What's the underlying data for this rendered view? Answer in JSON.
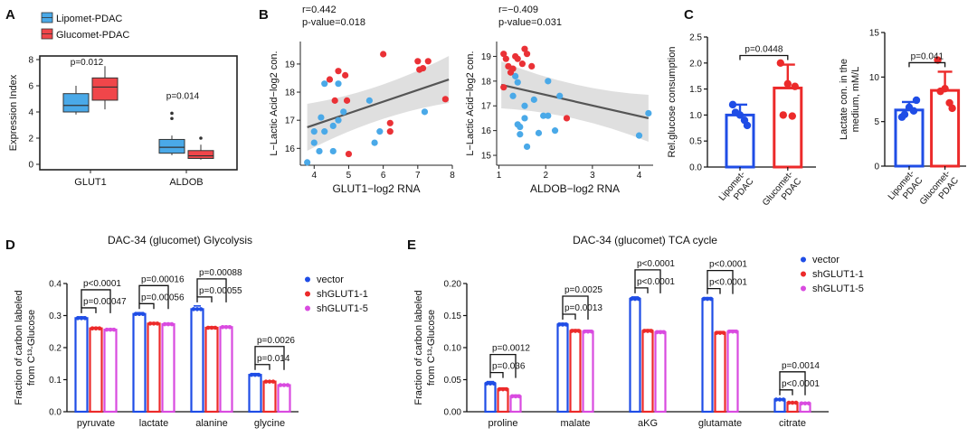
{
  "panel_letters": [
    "A",
    "B",
    "C",
    "D",
    "E"
  ],
  "chart_data": [
    {
      "id": "A",
      "type": "box",
      "ylabel": "Expression Index",
      "ylim": [
        0,
        8
      ],
      "yticks": [
        "0",
        "2",
        "4",
        "6",
        "8"
      ],
      "categories": [
        "GLUT1",
        "ALDOB"
      ],
      "legend": [
        "Lipomet-PDAC",
        "Glucomet-PDAC"
      ],
      "colors": [
        "#4aa9e8",
        "#f0464a"
      ],
      "boxes": [
        {
          "category": "GLUT1",
          "group": "Lipomet-PDAC",
          "min": 3.8,
          "q1": 4.0,
          "median": 4.5,
          "q3": 5.4,
          "max": 6.0,
          "outliers": []
        },
        {
          "category": "GLUT1",
          "group": "Glucomet-PDAC",
          "min": 4.2,
          "q1": 4.9,
          "median": 5.9,
          "q3": 6.6,
          "max": 7.5,
          "outliers": []
        },
        {
          "category": "ALDOB",
          "group": "Lipomet-PDAC",
          "min": 0.7,
          "q1": 0.85,
          "median": 1.3,
          "q3": 1.9,
          "max": 2.2,
          "outliers": [
            3.5,
            3.9
          ]
        },
        {
          "category": "ALDOB",
          "group": "Glucomet-PDAC",
          "min": 0.35,
          "q1": 0.45,
          "median": 0.65,
          "q3": 1.05,
          "max": 1.5,
          "outliers": [
            2.0
          ]
        }
      ],
      "annotations": [
        {
          "text": "p=0.012",
          "category": "GLUT1",
          "y": 7.6
        },
        {
          "text": "p=0.014",
          "category": "ALDOB",
          "y": 5.0
        }
      ]
    },
    {
      "id": "B1",
      "type": "scatter",
      "title_lines": [
        "r=0.442",
        "p-value=0.018"
      ],
      "xlabel": "GLUT1−log2 RNA",
      "ylabel": "L−Lactic Acid−log2 con.",
      "xlim": [
        3.6,
        8.0
      ],
      "ylim": [
        15.4,
        19.8
      ],
      "xticks": [
        "4",
        "5",
        "6",
        "7",
        "8"
      ],
      "yticks": [
        "16",
        "17",
        "18",
        "19"
      ],
      "fit": {
        "x": [
          3.8,
          7.9
        ],
        "y": [
          16.75,
          18.45
        ]
      },
      "series": [
        {
          "name": "Lipomet-PDAC",
          "color": "#4aa9e8",
          "points": [
            [
              3.8,
              15.5
            ],
            [
              4.0,
              16.2
            ],
            [
              4.15,
              15.9
            ],
            [
              4.0,
              16.6
            ],
            [
              4.2,
              17.1
            ],
            [
              4.3,
              18.3
            ],
            [
              4.3,
              16.6
            ],
            [
              4.55,
              15.9
            ],
            [
              4.55,
              16.8
            ],
            [
              4.7,
              18.3
            ],
            [
              4.7,
              17.0
            ],
            [
              4.85,
              17.3
            ],
            [
              5.6,
              17.7
            ],
            [
              5.75,
              16.2
            ],
            [
              5.9,
              16.6
            ],
            [
              7.2,
              17.3
            ]
          ]
        },
        {
          "name": "Glucomet-PDAC",
          "color": "#ea3136",
          "points": [
            [
              4.45,
              18.45
            ],
            [
              4.7,
              18.75
            ],
            [
              4.6,
              17.7
            ],
            [
              4.9,
              18.6
            ],
            [
              4.95,
              17.7
            ],
            [
              5.0,
              15.8
            ],
            [
              6.0,
              19.35
            ],
            [
              6.2,
              16.9
            ],
            [
              6.2,
              16.6
            ],
            [
              7.0,
              19.1
            ],
            [
              7.05,
              18.8
            ],
            [
              7.15,
              18.85
            ],
            [
              7.3,
              19.1
            ],
            [
              7.8,
              17.75
            ]
          ]
        }
      ]
    },
    {
      "id": "B2",
      "type": "scatter",
      "title_lines": [
        "r=−0.409",
        "p-value=0.031"
      ],
      "xlabel": "ALDOB−log2 RNA",
      "ylabel": "L−Lactic Acid−log2 con.",
      "xlim": [
        0.95,
        4.3
      ],
      "ylim": [
        14.6,
        19.6
      ],
      "xticks": [
        "1",
        "2",
        "3",
        "4"
      ],
      "yticks": [
        "15",
        "16",
        "17",
        "18",
        "19"
      ],
      "fit": {
        "x": [
          1.05,
          4.2
        ],
        "y": [
          17.85,
          16.5
        ]
      },
      "series": [
        {
          "name": "Lipomet-PDAC",
          "color": "#4aa9e8",
          "points": [
            [
              1.35,
              18.2
            ],
            [
              1.4,
              17.95
            ],
            [
              1.3,
              17.4
            ],
            [
              1.4,
              16.25
            ],
            [
              1.45,
              16.15
            ],
            [
              1.45,
              15.85
            ],
            [
              1.55,
              17.0
            ],
            [
              1.55,
              16.5
            ],
            [
              1.6,
              15.35
            ],
            [
              1.75,
              17.25
            ],
            [
              1.85,
              15.9
            ],
            [
              1.95,
              16.6
            ],
            [
              2.05,
              18.0
            ],
            [
              2.05,
              16.6
            ],
            [
              2.2,
              16.0
            ],
            [
              2.3,
              17.4
            ],
            [
              4.0,
              15.8
            ],
            [
              4.2,
              16.7
            ]
          ]
        },
        {
          "name": "Glucomet-PDAC",
          "color": "#ea3136",
          "points": [
            [
              1.1,
              19.1
            ],
            [
              1.15,
              18.9
            ],
            [
              1.2,
              18.6
            ],
            [
              1.25,
              18.35
            ],
            [
              1.3,
              18.5
            ],
            [
              1.35,
              19.0
            ],
            [
              1.4,
              18.9
            ],
            [
              1.5,
              18.7
            ],
            [
              1.55,
              19.3
            ],
            [
              1.6,
              19.1
            ],
            [
              1.7,
              18.6
            ],
            [
              1.1,
              17.75
            ],
            [
              2.45,
              16.5
            ]
          ]
        }
      ]
    },
    {
      "id": "C1",
      "type": "bar",
      "ylabel": "Rel.glucose consumption",
      "ylim": [
        0,
        2.5
      ],
      "yticks": [
        "0.0",
        "0.5",
        "1.0",
        "1.5",
        "2.0",
        "2.5"
      ],
      "categories": [
        "Lipomet-PDAC",
        "Glucomet-PDAC"
      ],
      "category_lines": [
        [
          "Lipomet-",
          "PDAC"
        ],
        [
          "Glucomet-",
          "PDAC"
        ]
      ],
      "values": [
        1.0,
        1.52
      ],
      "errors": [
        0.2,
        0.45
      ],
      "colors": [
        "#1f4de6",
        "#ec2a2a"
      ],
      "points": [
        [
          1.2,
          1.0,
          0.8,
          1.05,
          0.9
        ],
        [
          2.0,
          1.6,
          1.55,
          1.0,
          0.98
        ]
      ],
      "pvalue": "p=0.0448"
    },
    {
      "id": "C2",
      "type": "bar",
      "ylabel_lines": [
        "Lactate con. in the",
        "medium, mM/L"
      ],
      "ylim": [
        0,
        15
      ],
      "yticks": [
        "0",
        "5",
        "10",
        "15"
      ],
      "categories": [
        "Lipomet-PDAC",
        "Glucomet-PDAC"
      ],
      "category_lines": [
        [
          "Lipomet-",
          "PDAC"
        ],
        [
          "Glucomet-",
          "PDAC"
        ]
      ],
      "values": [
        6.3,
        8.5
      ],
      "errors": [
        0.9,
        2.1
      ],
      "colors": [
        "#1f4de6",
        "#ec2a2a"
      ],
      "points": [
        [
          5.5,
          6.6,
          7.4,
          5.8,
          6.2
        ],
        [
          11.9,
          8.7,
          6.5,
          8.4,
          7.1
        ]
      ],
      "pvalue": "p=0.041"
    },
    {
      "id": "D",
      "type": "bar",
      "title": "DAC-34 (glucomet) Glycolysis",
      "ylabel_lines": [
        "Fraction of carbon labeled",
        "from C¹³-Glucose"
      ],
      "ylim": [
        0,
        0.4
      ],
      "yticks": [
        "0.0",
        "0.1",
        "0.2",
        "0.3",
        "0.4"
      ],
      "categories": [
        "pyruvate",
        "lactate",
        "alanine",
        "glycine"
      ],
      "series": [
        {
          "name": "vector",
          "color": "#1f4de6",
          "values": [
            0.292,
            0.305,
            0.32,
            0.115
          ],
          "errors": [
            0.004,
            0.004,
            0.01,
            0.004
          ]
        },
        {
          "name": "shGLUT1-1",
          "color": "#ec2a2a",
          "values": [
            0.26,
            0.275,
            0.262,
            0.094
          ],
          "errors": [
            0.003,
            0.003,
            0.003,
            0.002
          ]
        },
        {
          "name": "shGLUT1-5",
          "color": "#d94be0",
          "values": [
            0.256,
            0.273,
            0.264,
            0.083
          ],
          "errors": [
            0.003,
            0.003,
            0.003,
            0.002
          ]
        }
      ],
      "pvalues": [
        {
          "category": "pyruvate",
          "labels": [
            "p<0.0001",
            "p=0.00047"
          ]
        },
        {
          "category": "lactate",
          "labels": [
            "p=0.00016",
            "p=0.00056"
          ]
        },
        {
          "category": "alanine",
          "labels": [
            "p=0.00088",
            "p=0.00055"
          ]
        },
        {
          "category": "glycine",
          "labels": [
            "p=0.0026",
            "p=0.014"
          ]
        }
      ]
    },
    {
      "id": "E",
      "type": "bar",
      "title": "DAC-34 (glucomet) TCA cycle",
      "ylabel_lines": [
        "Fraction of carbon labeled",
        "from C¹³-Glucose"
      ],
      "ylim": [
        0,
        0.2
      ],
      "yticks": [
        "0.00",
        "0.05",
        "0.10",
        "0.15",
        "0.20"
      ],
      "categories": [
        "proline",
        "malate",
        "aKG",
        "glutamate",
        "citrate"
      ],
      "series": [
        {
          "name": "vector",
          "color": "#1f4de6",
          "values": [
            0.044,
            0.136,
            0.176,
            0.176,
            0.019
          ],
          "errors": [
            0.003,
            0.002,
            0.003,
            0.002,
            0.001
          ]
        },
        {
          "name": "shGLUT1-1",
          "color": "#ec2a2a",
          "values": [
            0.035,
            0.126,
            0.126,
            0.123,
            0.014
          ],
          "errors": [
            0.002,
            0.002,
            0.002,
            0.002,
            0.001
          ]
        },
        {
          "name": "shGLUT1-5",
          "color": "#d94be0",
          "values": [
            0.024,
            0.125,
            0.124,
            0.125,
            0.013
          ],
          "errors": [
            0.002,
            0.002,
            0.002,
            0.002,
            0.001
          ]
        }
      ],
      "pvalues": [
        {
          "category": "proline",
          "labels": [
            "p=0.0012",
            "p=0.036"
          ]
        },
        {
          "category": "malate",
          "labels": [
            "p=0.0025",
            "p=0.0013"
          ]
        },
        {
          "category": "aKG",
          "labels": [
            "p<0.0001",
            "p<0.0001"
          ]
        },
        {
          "category": "glutamate",
          "labels": [
            "p<0.0001",
            "p<0.0001"
          ]
        },
        {
          "category": "citrate",
          "labels": [
            "p=0.0014",
            "p<0.0001"
          ]
        }
      ]
    }
  ]
}
